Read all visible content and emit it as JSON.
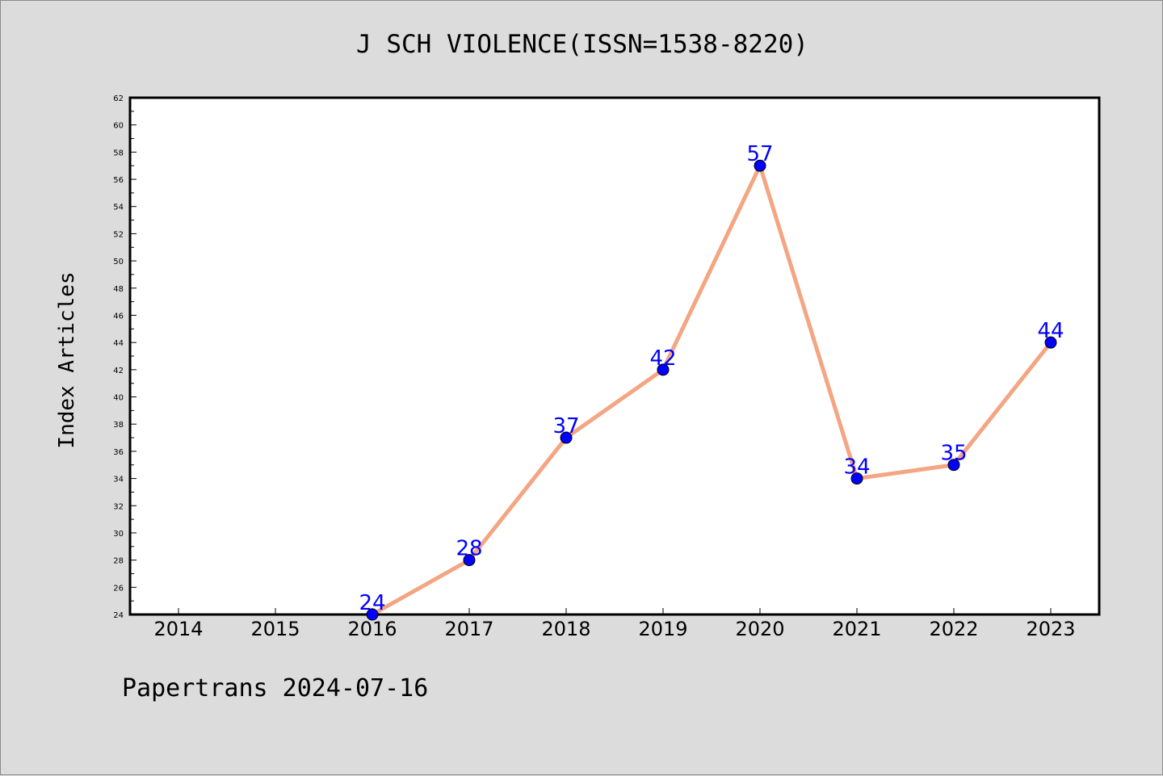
{
  "chart_data": {
    "type": "line",
    "title": "J SCH VIOLENCE(ISSN=1538-8220)",
    "xlabel": "",
    "ylabel": "Index Articles",
    "categories": [
      "2014",
      "2015",
      "2016",
      "2017",
      "2018",
      "2019",
      "2020",
      "2021",
      "2022",
      "2023"
    ],
    "y_ticks": [
      "24",
      "26",
      "28",
      "30",
      "32",
      "34",
      "36",
      "38",
      "40",
      "42",
      "44",
      "46",
      "48",
      "50",
      "52",
      "54",
      "56",
      "58",
      "60",
      "62"
    ],
    "ylim": [
      24,
      62
    ],
    "series": [
      {
        "x": [
          "2016",
          "2017",
          "2018",
          "2019",
          "2020",
          "2021",
          "2022",
          "2023"
        ],
        "values": [
          24,
          28,
          37,
          42,
          57,
          34,
          35,
          44
        ]
      }
    ],
    "data_labels": [
      "24",
      "28",
      "37",
      "42",
      "57",
      "34",
      "35",
      "44"
    ],
    "colors": {
      "line": "#f4a582",
      "marker": "#0000ff",
      "label": "#0000ff",
      "background": "#dcdcdc",
      "plot": "#ffffff"
    },
    "grid": false,
    "legend": "none"
  },
  "footer": "Papertrans 2024-07-16"
}
